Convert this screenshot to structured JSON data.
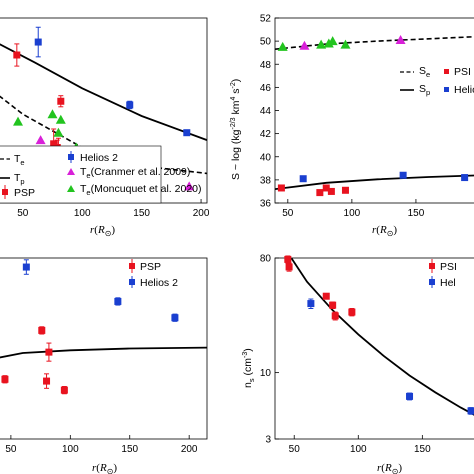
{
  "colors": {
    "psp": "#e8131f",
    "helios": "#1a3fd0",
    "cranmer": "#d820d8",
    "moncuquet": "#22c41f",
    "model": "#000000"
  },
  "chart_data": [
    {
      "id": "temperature",
      "type": "scatter",
      "xlim": [
        30,
        205
      ],
      "ylim": [
        0,
        10
      ],
      "x_ticks": [
        "50",
        "100",
        "150",
        "200"
      ],
      "y_ticks": [],
      "xlabel": "",
      "ylabel": "",
      "legend_position": "bottom-left",
      "legend": {
        "te_line": "T",
        "te_line_sub": "e",
        "tp_line": "T",
        "tp_line_sub": "p",
        "psp": "PSP",
        "helios": "Helios 2",
        "cranmer": "T",
        "cranmer_sub": "e",
        "cranmer_rest": "(Cranmer et al. 2009)",
        "moncuquet": "T",
        "moncuquet_sub": "e",
        "moncuquet_rest": "(Moncuquet et al. 2020)"
      },
      "series": [
        {
          "kind": "psp",
          "x": [
            45,
            76,
            80,
            82,
            79
          ],
          "y": [
            8.0,
            3.2,
            2.8,
            5.5,
            3.0
          ],
          "err": [
            0.6,
            0.8,
            0.7,
            0.3,
            0.4
          ]
        },
        {
          "kind": "helios",
          "x": [
            63,
            140,
            188
          ],
          "y": [
            8.7,
            5.3,
            3.8
          ],
          "err": [
            0.8,
            0.2,
            0.1
          ]
        },
        {
          "kind": "cranmer",
          "x": [
            65,
            138,
            190
          ],
          "y": [
            3.4,
            1.2,
            0.9
          ]
        },
        {
          "kind": "moncuquet",
          "x": [
            46,
            75,
            80,
            82,
            95
          ],
          "y": [
            4.4,
            4.8,
            3.8,
            4.5,
            3.0
          ]
        },
        {
          "kind": "model_solid",
          "x": [
            30,
            60,
            100,
            150,
            205
          ],
          "y": [
            8.6,
            7.6,
            6.2,
            4.7,
            3.4
          ]
        },
        {
          "kind": "model_dashed",
          "x": [
            30,
            50,
            100,
            150,
            205
          ],
          "y": [
            5.8,
            4.8,
            3.0,
            2.0,
            1.6
          ]
        }
      ]
    },
    {
      "id": "entropy",
      "type": "scatter",
      "xlim": [
        40,
        200
      ],
      "ylim": [
        36,
        52
      ],
      "x_ticks": [
        "50",
        "100",
        "150"
      ],
      "y_ticks": [
        "36",
        "38",
        "40",
        "42",
        "44",
        "46",
        "48",
        "50",
        "52"
      ],
      "xlabel": "r(R",
      "xlabel_sub": "⊙",
      "ylabel": "S ~ log (kg",
      "ylabel_sup1": "-2/3",
      "ylabel_mid": " km",
      "ylabel_sup2": "4",
      "ylabel_end": " s",
      "ylabel_sup3": "-2",
      "ylabel_close": ")",
      "legend_position": "center-right",
      "legend": {
        "se": "S",
        "se_sub": "e",
        "sp": "S",
        "sp_sub": "p",
        "psp": "PSI",
        "helios": "Helio"
      },
      "series": [
        {
          "kind": "psp",
          "x": [
            45,
            75,
            80,
            84,
            95
          ],
          "y": [
            37.3,
            36.9,
            37.3,
            37.0,
            37.1
          ]
        },
        {
          "kind": "helios",
          "x": [
            62,
            140,
            188
          ],
          "y": [
            38.1,
            38.4,
            38.2
          ]
        },
        {
          "kind": "cranmer",
          "x": [
            63,
            138
          ],
          "y": [
            49.6,
            50.1
          ]
        },
        {
          "kind": "moncuquet",
          "x": [
            46,
            76,
            82,
            85,
            95
          ],
          "y": [
            49.5,
            49.7,
            49.8,
            50.0,
            49.7
          ]
        },
        {
          "kind": "model_dashed",
          "x": [
            40,
            80,
            120,
            160,
            200
          ],
          "y": [
            49.3,
            49.75,
            50.0,
            50.2,
            50.4
          ]
        },
        {
          "kind": "model_solid",
          "x": [
            40,
            80,
            120,
            160,
            200
          ],
          "y": [
            37.2,
            37.75,
            38.05,
            38.25,
            38.4
          ]
        }
      ]
    },
    {
      "id": "ratio",
      "type": "scatter",
      "xlim": [
        40,
        215
      ],
      "ylim": [
        0,
        10
      ],
      "x_ticks": [
        "50",
        "100",
        "150",
        "200"
      ],
      "y_ticks": [],
      "xlabel": "r(R",
      "xlabel_sub": "⊙",
      "ylabel": "",
      "legend_position": "top-right",
      "legend": {
        "psp": "PSP",
        "helios": "Helios 2"
      },
      "series": [
        {
          "kind": "psp",
          "x": [
            45,
            76,
            80,
            82,
            95
          ],
          "y": [
            3.3,
            6.0,
            3.2,
            4.8,
            2.7
          ],
          "err": [
            0.2,
            0.2,
            0.4,
            0.5,
            0.2
          ]
        },
        {
          "kind": "helios",
          "x": [
            63,
            140,
            188
          ],
          "y": [
            9.5,
            7.6,
            6.7
          ],
          "err": [
            0.4,
            0.2,
            0.2
          ]
        },
        {
          "kind": "model_solid",
          "x": [
            40,
            60,
            100,
            150,
            215
          ],
          "y": [
            4.5,
            4.75,
            4.9,
            5.0,
            5.05
          ]
        }
      ]
    },
    {
      "id": "density",
      "type": "scatter",
      "xlim": [
        35,
        195
      ],
      "ylim": [
        3,
        80
      ],
      "y_log": true,
      "x_ticks": [
        "50",
        "100",
        "150"
      ],
      "y_ticks": [
        "3",
        "10",
        "80"
      ],
      "xlabel": "r(R",
      "xlabel_sub": "⊙",
      "ylabel": "n",
      "ylabel_sub": "s",
      "ylabel_rest": " (cm",
      "ylabel_sup": "-3",
      "ylabel_close": ")",
      "legend_position": "top-right",
      "legend": {
        "psp": "PSI",
        "helios": "Hel"
      },
      "series": [
        {
          "kind": "psp",
          "x": [
            45,
            46,
            75,
            80,
            82,
            95
          ],
          "y": [
            78,
            68,
            40,
            34,
            28,
            30
          ],
          "err": [
            5,
            5,
            2,
            2,
            2,
            2
          ]
        },
        {
          "kind": "helios",
          "x": [
            63,
            140,
            188
          ],
          "y": [
            35,
            6.5,
            5.0
          ],
          "err": [
            3,
            0.4,
            0.3
          ]
        },
        {
          "kind": "model_solid",
          "x": [
            45,
            60,
            80,
            100,
            120,
            140,
            160,
            180,
            195
          ],
          "y": [
            88,
            52,
            31,
            20,
            13.5,
            9.5,
            7.0,
            5.3,
            4.4
          ]
        }
      ]
    }
  ]
}
